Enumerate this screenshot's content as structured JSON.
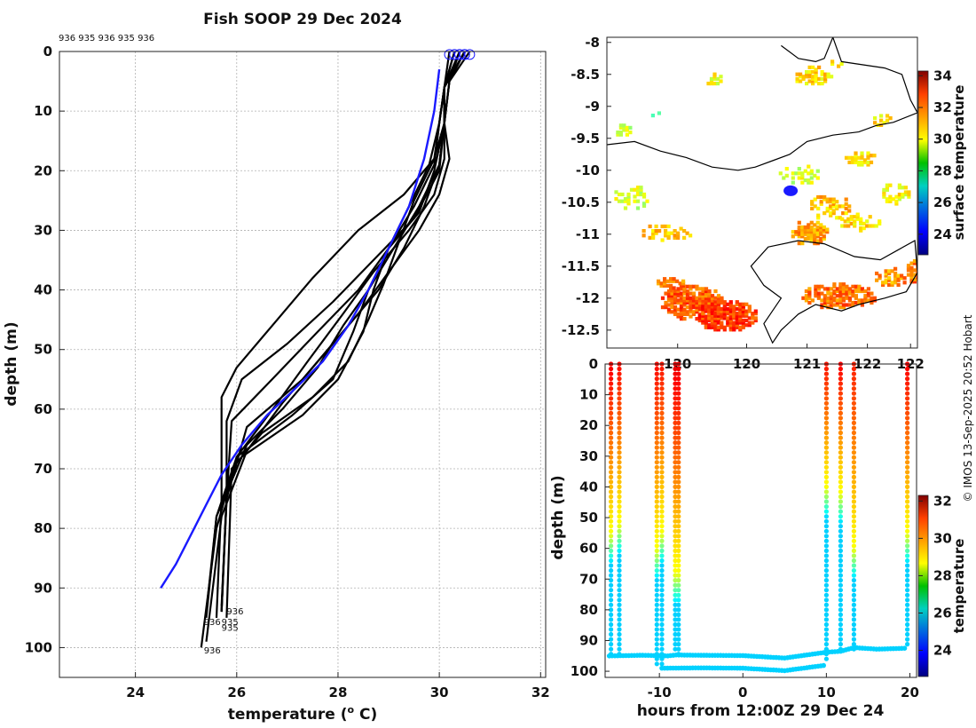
{
  "credit": "© IMOS 13-Sep-2025 20:52 Hobart",
  "chart_data": [
    {
      "type": "line",
      "title": "Fish SOOP 29 Dec 2024",
      "xlabel": "temperature (",
      "xlabel_sup": "o",
      "xlabel_tail": " C)",
      "ylabel": "depth (m)",
      "xlim": [
        22.5,
        32.1
      ],
      "ylim": [
        105,
        0
      ],
      "xticks": [
        "24",
        "26",
        "28",
        "30",
        "32"
      ],
      "yticks": [
        "0",
        "10",
        "20",
        "30",
        "40",
        "50",
        "60",
        "70",
        "80",
        "90",
        "100"
      ],
      "grid": true,
      "top_annotation": "936 935 936 935 936",
      "mean_profile": {
        "name": "mean",
        "color": "#1a1aff",
        "temperature": [
          30.0,
          29.9,
          29.7,
          29.4,
          29.0,
          28.6,
          28.2,
          27.7,
          27.1,
          26.6,
          26.1,
          25.7,
          25.4,
          25.1,
          24.8,
          24.5
        ],
        "depth": [
          3,
          10,
          18,
          26,
          33,
          40,
          46,
          52,
          57,
          61,
          66,
          71,
          76,
          81,
          86,
          90
        ]
      },
      "profiles": [
        {
          "temperature": [
            30.4,
            30.2,
            30.1,
            30.0,
            29.5,
            28.7,
            27.9,
            27.0,
            26.1,
            25.8,
            25.8,
            25.7
          ],
          "depth": [
            0,
            5,
            12,
            20,
            28,
            35,
            42,
            49,
            55,
            62,
            75,
            93
          ]
        },
        {
          "temperature": [
            30.5,
            30.2,
            30.1,
            29.9,
            29.6,
            29.0,
            28.4,
            27.6,
            26.7,
            25.9,
            25.8,
            25.7
          ],
          "depth": [
            0,
            5,
            12,
            20,
            27,
            33,
            40,
            47,
            55,
            62,
            75,
            94
          ]
        },
        {
          "temperature": [
            30.6,
            30.2,
            30.1,
            30.0,
            29.7,
            29.3,
            28.8,
            28.1,
            27.3,
            26.2,
            25.8,
            25.7
          ],
          "depth": [
            0,
            5,
            12,
            19,
            26,
            33,
            40,
            47,
            55,
            63,
            75,
            94
          ]
        },
        {
          "temperature": [
            30.3,
            30.1,
            30.0,
            29.9,
            29.5,
            29.0,
            28.6,
            28.3,
            27.9,
            27.1,
            26.0,
            25.6,
            25.4
          ],
          "depth": [
            0,
            6,
            12,
            19,
            26,
            33,
            40,
            47,
            55,
            61,
            68,
            78,
            95
          ]
        },
        {
          "temperature": [
            30.2,
            30.1,
            30.0,
            29.8,
            29.4,
            29.0,
            28.7,
            28.5,
            28.0,
            27.3,
            26.1,
            25.6,
            25.4
          ],
          "depth": [
            0,
            6,
            12,
            19,
            26,
            33,
            40,
            47,
            55,
            61,
            68,
            78,
            94
          ]
        },
        {
          "temperature": [
            30.4,
            30.1,
            30.1,
            30.1,
            29.9,
            29.4,
            28.7,
            28.1,
            27.4,
            26.8,
            26.0,
            25.6,
            25.3
          ],
          "depth": [
            0,
            6,
            12,
            18,
            24,
            30,
            37,
            44,
            52,
            59,
            68,
            80,
            100
          ]
        },
        {
          "temperature": [
            30.5,
            30.1,
            30.1,
            30.2,
            30.0,
            29.6,
            29.0,
            28.4,
            27.6,
            26.9,
            26.2,
            25.7,
            25.4
          ],
          "depth": [
            0,
            6,
            12,
            18,
            24,
            30,
            37,
            44,
            52,
            59,
            67,
            78,
            99
          ]
        },
        {
          "temperature": [
            30.3,
            30.1,
            30.1,
            29.9,
            29.3,
            28.4,
            27.5,
            26.7,
            26.0,
            25.7,
            25.7,
            25.6
          ],
          "depth": [
            0,
            6,
            12,
            18,
            24,
            30,
            38,
            46,
            53,
            58,
            75,
            95
          ]
        },
        {
          "temperature": [
            30.4,
            30.1,
            30.1,
            30.0,
            29.6,
            29.1,
            28.6,
            28.1,
            27.6,
            26.9,
            26.2,
            25.8,
            25.7
          ],
          "depth": [
            0,
            6,
            12,
            19,
            26,
            33,
            40,
            46,
            53,
            60,
            66,
            74,
            94
          ]
        },
        {
          "temperature": [
            30.5,
            30.1,
            30.0,
            29.9,
            29.5,
            29.2,
            28.9,
            28.6,
            28.2,
            27.5,
            26.5,
            25.9,
            25.8
          ],
          "depth": [
            0,
            6,
            12,
            18,
            25,
            32,
            39,
            45,
            52,
            58,
            64,
            70,
            95
          ]
        }
      ],
      "end_labels": [
        {
          "text": "936",
          "temperature": 25.8,
          "depth": 93.8
        },
        {
          "text": "935",
          "temperature": 25.7,
          "depth": 95.6
        },
        {
          "text": "935",
          "temperature": 25.7,
          "depth": 96.6
        },
        {
          "text": "936",
          "temperature": 25.35,
          "depth": 95.6
        },
        {
          "text": "936",
          "temperature": 25.35,
          "depth": 100.4
        }
      ]
    },
    {
      "type": "heatmap",
      "title": "",
      "xlabel": "",
      "ylabel": "",
      "xlim": [
        118.68,
        122.28
      ],
      "ylim": [
        -12.78,
        -7.92
      ],
      "xticks": [
        "120",
        "120",
        "121",
        "122",
        "122"
      ],
      "xtick_values": [
        119.5,
        120.3,
        121.0,
        121.7,
        122.2
      ],
      "yticks": [
        "-8",
        "-8.5",
        "-9",
        "-9.5",
        "-10",
        "-10.5",
        "-11",
        "-11.5",
        "-12",
        "-12.5"
      ],
      "colorbar": {
        "label": "surface temperature",
        "ticks": [
          "24",
          "26",
          "28",
          "30",
          "32",
          "34"
        ],
        "min": 22.7,
        "max": 34.3
      },
      "track_position": {
        "lon": 120.81,
        "lat": -10.32,
        "color": "#1a1aff"
      },
      "sst_patches": [
        {
          "lon": 119.65,
          "lat": -12.05,
          "rx": 0.38,
          "ry": 0.28,
          "temp": 31.8,
          "density": 0.8
        },
        {
          "lon": 120.05,
          "lat": -12.25,
          "rx": 0.35,
          "ry": 0.25,
          "temp": 32.2,
          "density": 0.85
        },
        {
          "lon": 119.4,
          "lat": -11.75,
          "rx": 0.18,
          "ry": 0.1,
          "temp": 31.5,
          "density": 0.6
        },
        {
          "lon": 121.35,
          "lat": -11.95,
          "rx": 0.45,
          "ry": 0.2,
          "temp": 31.6,
          "density": 0.7
        },
        {
          "lon": 121.95,
          "lat": -11.65,
          "rx": 0.2,
          "ry": 0.15,
          "temp": 31.2,
          "density": 0.5
        },
        {
          "lon": 122.22,
          "lat": -11.55,
          "rx": 0.1,
          "ry": 0.2,
          "temp": 31.5,
          "density": 0.7
        },
        {
          "lon": 121.0,
          "lat": -10.95,
          "rx": 0.22,
          "ry": 0.2,
          "temp": 31.0,
          "density": 0.65
        },
        {
          "lon": 121.25,
          "lat": -10.55,
          "rx": 0.25,
          "ry": 0.2,
          "temp": 30.6,
          "density": 0.45
        },
        {
          "lon": 121.6,
          "lat": -10.8,
          "rx": 0.25,
          "ry": 0.15,
          "temp": 30.3,
          "density": 0.4
        },
        {
          "lon": 120.9,
          "lat": -10.05,
          "rx": 0.3,
          "ry": 0.15,
          "temp": 29.5,
          "density": 0.35
        },
        {
          "lon": 121.6,
          "lat": -9.8,
          "rx": 0.2,
          "ry": 0.12,
          "temp": 30.2,
          "density": 0.55
        },
        {
          "lon": 122.0,
          "lat": -10.35,
          "rx": 0.2,
          "ry": 0.18,
          "temp": 30.0,
          "density": 0.5
        },
        {
          "lon": 121.05,
          "lat": -8.5,
          "rx": 0.22,
          "ry": 0.15,
          "temp": 30.3,
          "density": 0.6
        },
        {
          "lon": 121.3,
          "lat": -8.3,
          "rx": 0.1,
          "ry": 0.08,
          "temp": 30.0,
          "density": 0.5
        },
        {
          "lon": 119.9,
          "lat": -8.55,
          "rx": 0.1,
          "ry": 0.1,
          "temp": 29.8,
          "density": 0.5
        },
        {
          "lon": 121.85,
          "lat": -9.2,
          "rx": 0.12,
          "ry": 0.1,
          "temp": 30.2,
          "density": 0.5
        },
        {
          "lon": 118.95,
          "lat": -10.4,
          "rx": 0.22,
          "ry": 0.2,
          "temp": 29.4,
          "density": 0.4
        },
        {
          "lon": 119.35,
          "lat": -10.95,
          "rx": 0.3,
          "ry": 0.15,
          "temp": 30.5,
          "density": 0.45
        },
        {
          "lon": 118.85,
          "lat": -9.35,
          "rx": 0.1,
          "ry": 0.1,
          "temp": 29.3,
          "density": 0.45
        },
        {
          "lon": 119.2,
          "lat": -9.1,
          "rx": 0.08,
          "ry": 0.05,
          "temp": 28.5,
          "density": 0.5
        }
      ],
      "coastlines": [
        {
          "closed": false,
          "points": [
            [
              118.68,
              -9.6
            ],
            [
              119.0,
              -9.55
            ],
            [
              119.3,
              -9.7
            ],
            [
              119.6,
              -9.8
            ],
            [
              119.9,
              -9.95
            ],
            [
              120.2,
              -10.0
            ],
            [
              120.4,
              -9.95
            ],
            [
              120.6,
              -9.85
            ],
            [
              120.8,
              -9.75
            ],
            [
              121.0,
              -9.55
            ],
            [
              121.3,
              -9.45
            ],
            [
              121.6,
              -9.4
            ],
            [
              121.8,
              -9.3
            ],
            [
              122.0,
              -9.25
            ],
            [
              122.28,
              -9.1
            ]
          ]
        },
        {
          "closed": false,
          "points": [
            [
              121.3,
              -7.92
            ],
            [
              121.4,
              -8.3
            ],
            [
              121.9,
              -8.4
            ],
            [
              122.1,
              -8.5
            ],
            [
              122.2,
              -8.9
            ],
            [
              122.28,
              -9.1
            ]
          ]
        },
        {
          "closed": false,
          "points": [
            [
              120.7,
              -8.05
            ],
            [
              120.9,
              -8.25
            ],
            [
              121.1,
              -8.3
            ],
            [
              121.2,
              -8.25
            ],
            [
              121.3,
              -7.92
            ]
          ]
        },
        {
          "closed": true,
          "points": [
            [
              120.55,
              -11.2
            ],
            [
              120.9,
              -11.1
            ],
            [
              121.2,
              -11.15
            ],
            [
              121.55,
              -11.35
            ],
            [
              121.85,
              -11.4
            ],
            [
              122.05,
              -11.25
            ],
            [
              122.25,
              -11.1
            ],
            [
              122.28,
              -11.6
            ],
            [
              122.15,
              -11.9
            ],
            [
              121.9,
              -12.0
            ],
            [
              121.6,
              -12.1
            ],
            [
              121.4,
              -12.2
            ],
            [
              121.1,
              -12.1
            ],
            [
              120.9,
              -12.25
            ],
            [
              120.7,
              -12.5
            ],
            [
              120.6,
              -12.7
            ],
            [
              120.5,
              -12.4
            ],
            [
              120.7,
              -12.0
            ],
            [
              120.5,
              -11.8
            ],
            [
              120.35,
              -11.5
            ]
          ]
        }
      ]
    },
    {
      "type": "scatter",
      "title": "",
      "xlabel": "hours from 12:00Z 29 Dec 24",
      "ylabel": "depth (m)",
      "xlim": [
        -16.5,
        20.8
      ],
      "ylim": [
        102,
        0
      ],
      "xticks": [
        "-10",
        "0",
        "10",
        "20"
      ],
      "xtick_values": [
        -10,
        0,
        10,
        20
      ],
      "yticks": [
        "0",
        "10",
        "20",
        "30",
        "40",
        "50",
        "60",
        "70",
        "80",
        "90",
        "100"
      ],
      "colorbar": {
        "label": "temperature",
        "ticks": [
          "24",
          "26",
          "28",
          "30",
          "32"
        ],
        "min": 22.6,
        "max": 32.3
      },
      "profiles": [
        {
          "hour": -15.8,
          "surface_temp": 31.2,
          "mix_depth": 55,
          "bottom": 95
        },
        {
          "hour": -14.8,
          "surface_temp": 31.0,
          "mix_depth": 52,
          "bottom": 95
        },
        {
          "hour": -10.3,
          "surface_temp": 31.0,
          "mix_depth": 60,
          "bottom": 98
        },
        {
          "hour": -9.7,
          "surface_temp": 30.9,
          "mix_depth": 55,
          "bottom": 99
        },
        {
          "hour": -8.1,
          "surface_temp": 31.3,
          "mix_depth": 68,
          "bottom": 94
        },
        {
          "hour": -7.7,
          "surface_temp": 31.3,
          "mix_depth": 68,
          "bottom": 95
        },
        {
          "hour": 10.0,
          "surface_temp": 30.9,
          "mix_depth": 40,
          "bottom": 97
        },
        {
          "hour": 11.7,
          "surface_temp": 31.1,
          "mix_depth": 42,
          "bottom": 93
        },
        {
          "hour": 13.3,
          "surface_temp": 30.8,
          "mix_depth": 60,
          "bottom": 93
        },
        {
          "hour": 19.7,
          "surface_temp": 31.1,
          "mix_depth": 55,
          "bottom": 92
        }
      ],
      "bottom_track": {
        "hours": [
          -16.0,
          -12.0,
          -9.0,
          -8.0,
          -5.0,
          0.0,
          5.0,
          10.0,
          11.7,
          13.3,
          16.0,
          19.7
        ],
        "depth": [
          95.0,
          94.8,
          95.0,
          94.7,
          94.8,
          94.9,
          95.7,
          93.8,
          93.5,
          92.3,
          92.8,
          92.5
        ]
      },
      "deep_track": {
        "hours": [
          -9.7,
          -5.0,
          0.0,
          5.0,
          10.0
        ],
        "depth": [
          99.0,
          98.9,
          99.0,
          99.8,
          98.0
        ]
      }
    }
  ]
}
